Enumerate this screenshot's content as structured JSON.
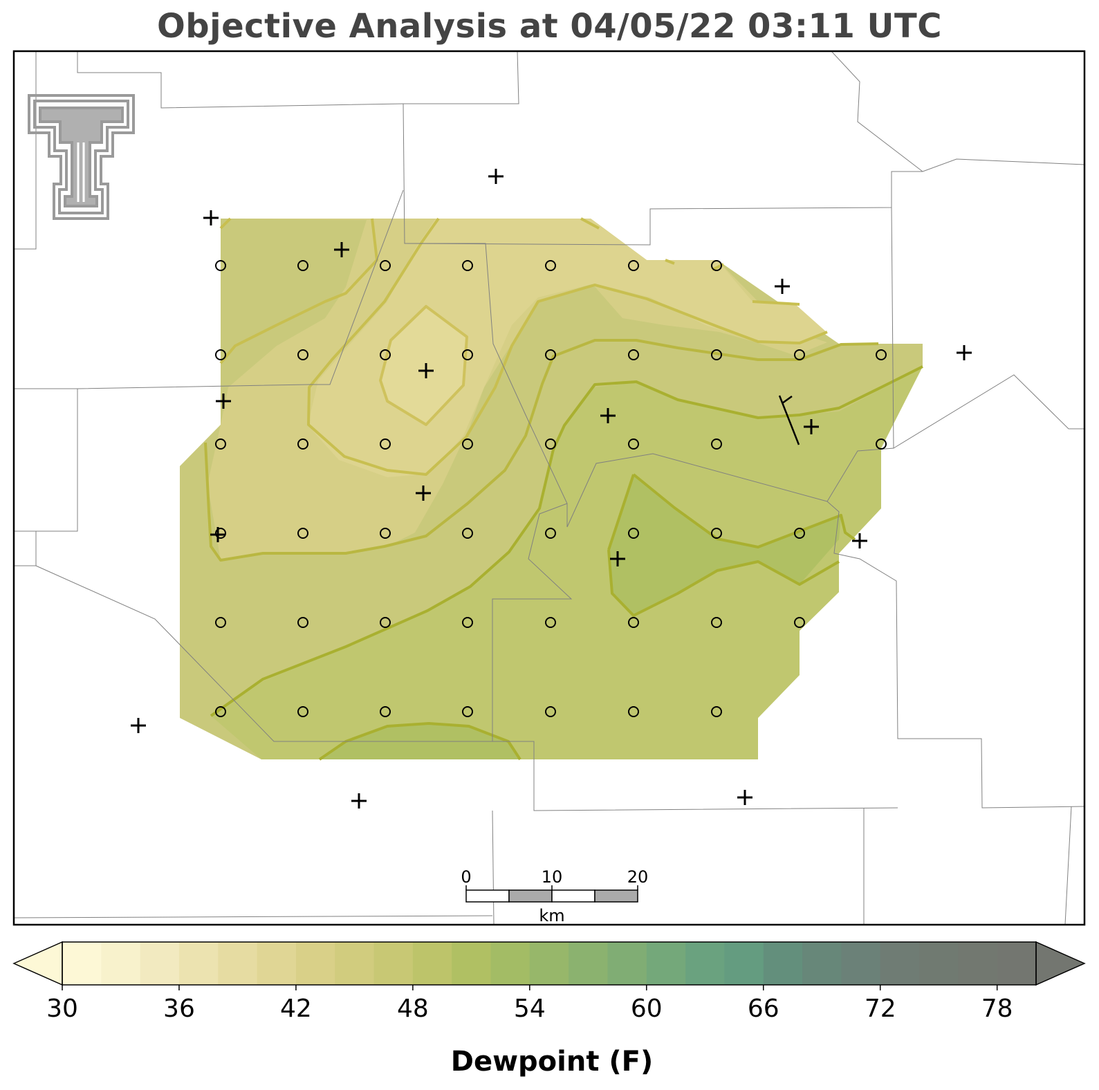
{
  "title": "Objective Analysis at 04/05/22 03:11 UTC",
  "map": {
    "variable": "Dewpoint (F)",
    "logo": "texas-tech-double-t-logo",
    "colors": {
      "fill_low": "#ddd48f",
      "fill_mid": "#c9c97b",
      "fill_high": "#b0c068",
      "contour_low": "#cbc058",
      "contour_mid": "#b7b63c",
      "contour_high": "#9fae2a",
      "county_lines": "#7a7a7a"
    }
  },
  "scale_bar": {
    "labels": [
      "0",
      "10",
      "20"
    ],
    "unit": "km"
  },
  "colorbar": {
    "label": "Dewpoint (F)",
    "ticks": [
      "30",
      "36",
      "42",
      "48",
      "54",
      "60",
      "66",
      "72",
      "78"
    ],
    "min": 30,
    "max": 80,
    "step": 2,
    "colors": [
      "#fdf8d6",
      "#f8f2cc",
      "#f2eac0",
      "#ece3b0",
      "#e6dca2",
      "#e0d695",
      "#d9d088",
      "#d1cc7e",
      "#c8c874",
      "#bdc46a",
      "#b0c063",
      "#a3bc65",
      "#97b76a",
      "#8bb26f",
      "#80ad74",
      "#74a87a",
      "#6aa27f",
      "#649c80",
      "#638f7c",
      "#678779",
      "#6b8178",
      "#6f7c74",
      "#707a71",
      "#727870",
      "#737670"
    ],
    "extend": "both"
  }
}
